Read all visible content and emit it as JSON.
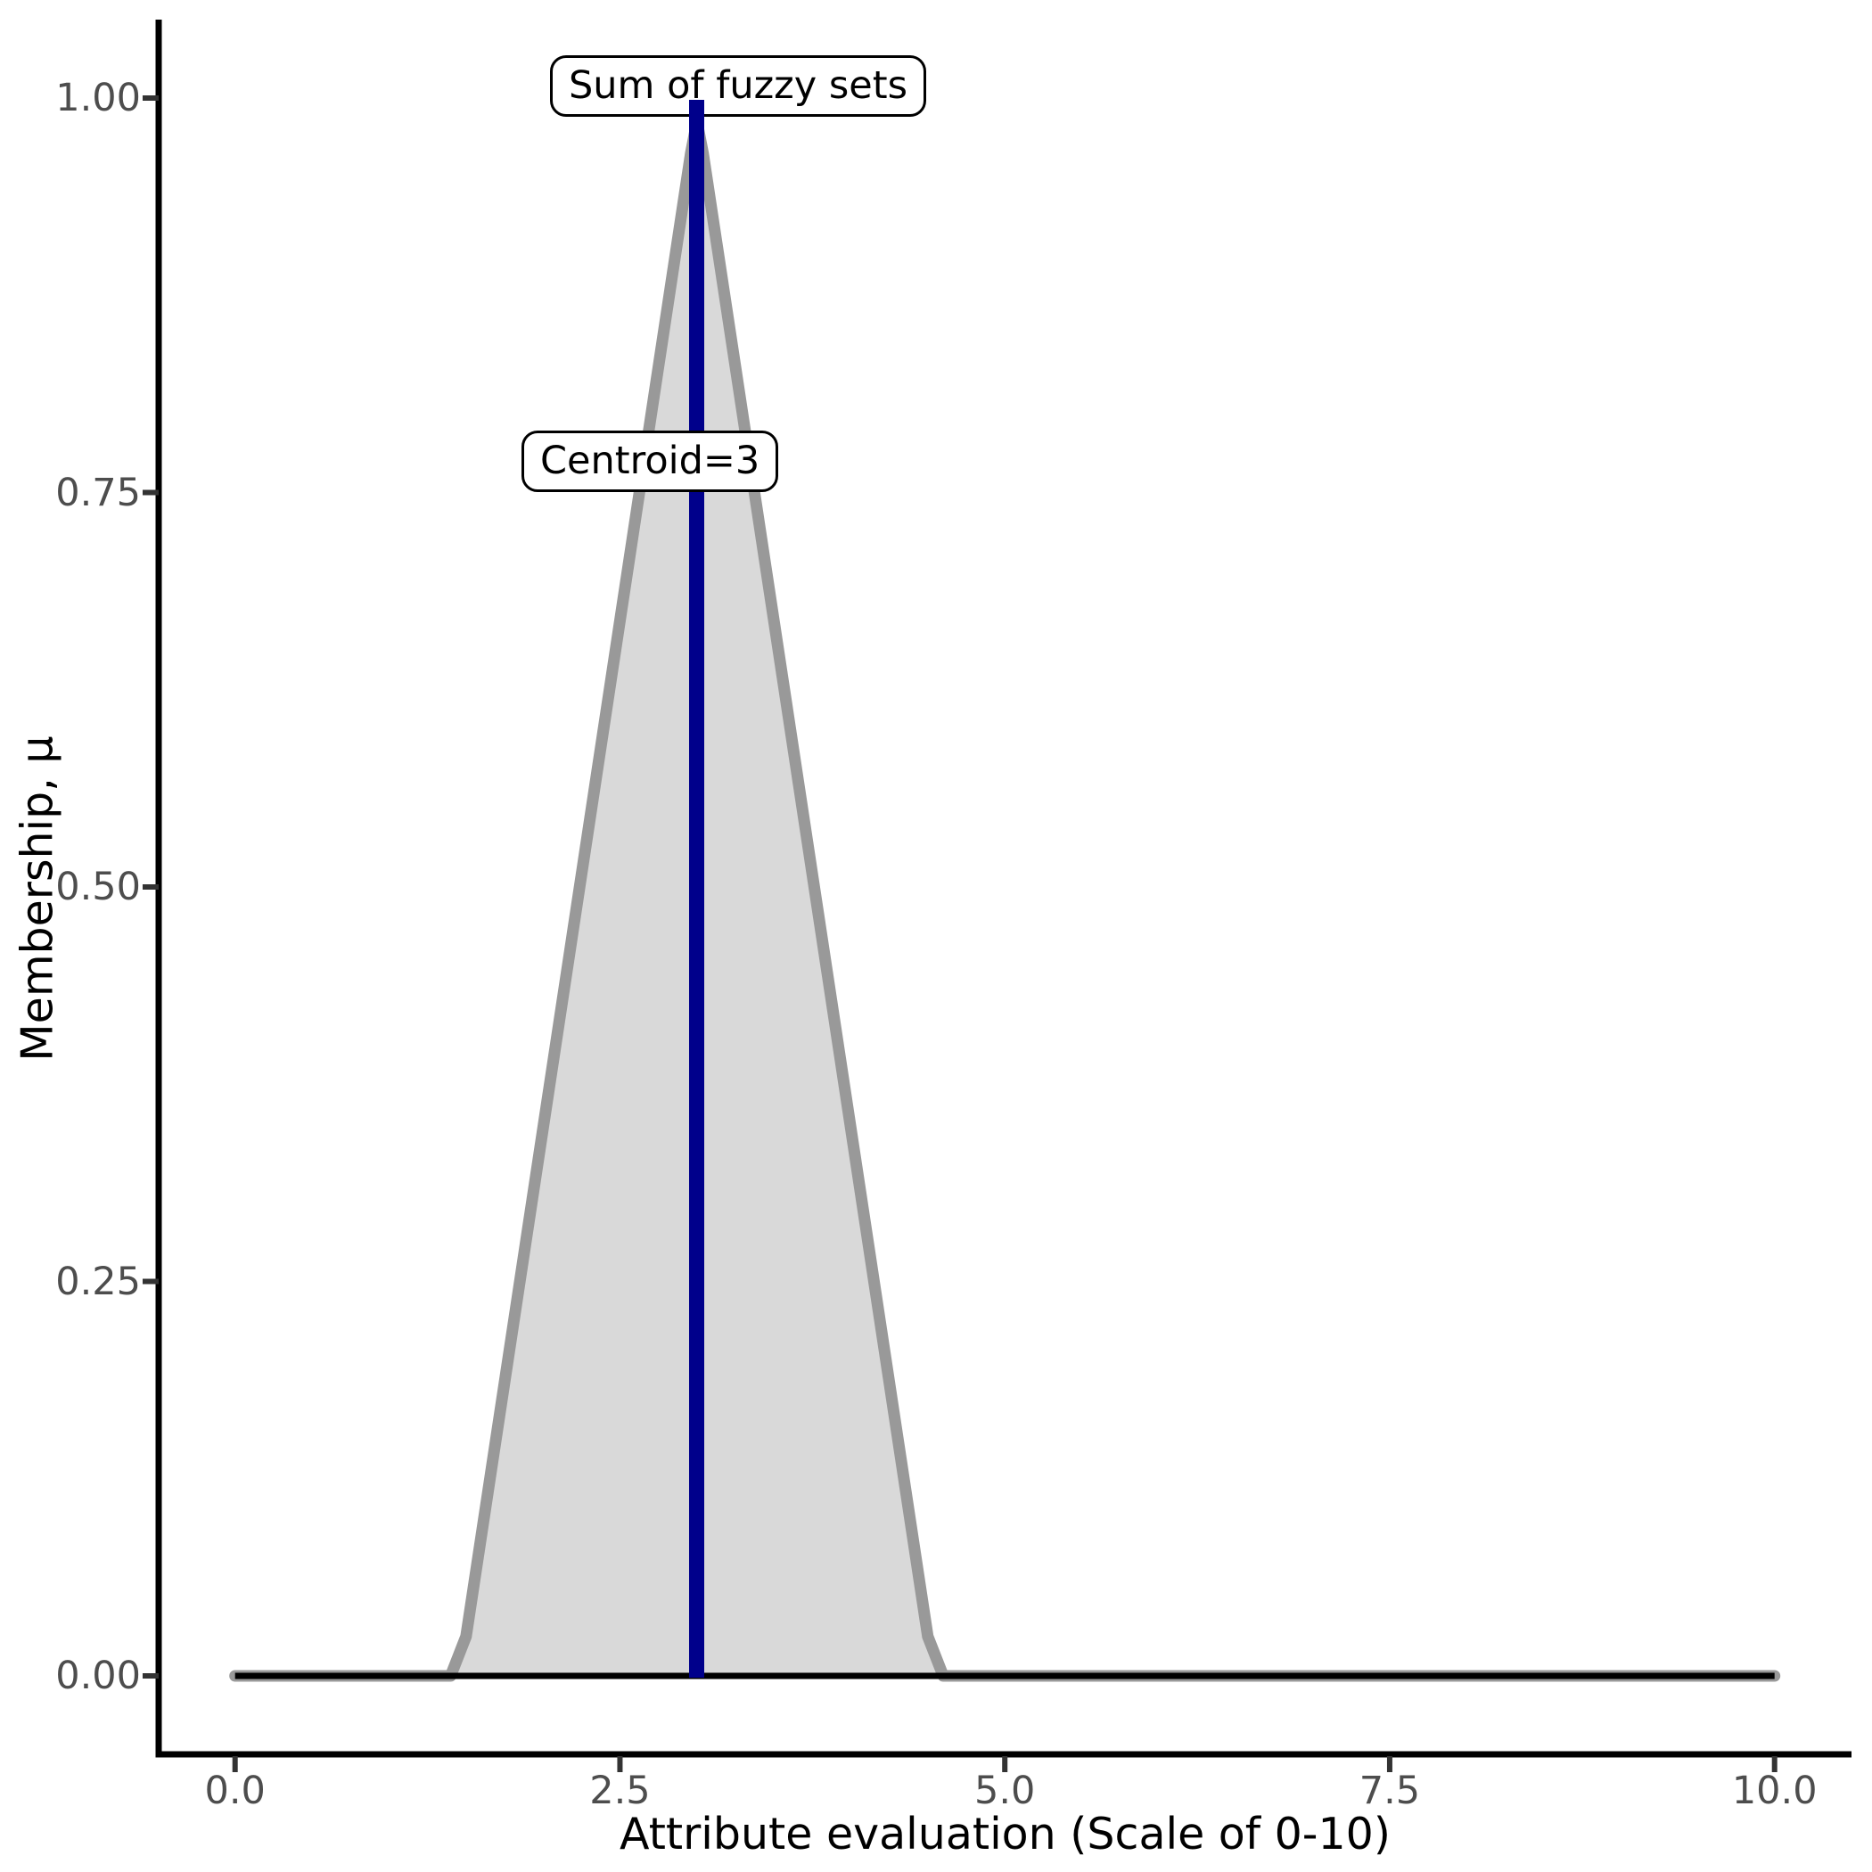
{
  "chart_data": {
    "type": "area",
    "title": "",
    "xlabel": "Attribute evaluation (Scale of 0-10)",
    "ylabel": "Membership, μ",
    "xlim": [
      0,
      10
    ],
    "ylim": [
      0,
      1
    ],
    "grid": false,
    "legend": "none",
    "background": "#ffffff",
    "x_ticks": {
      "values": [
        0,
        2.5,
        5,
        7.5,
        10
      ],
      "labels": [
        "0.0",
        "2.5",
        "5.0",
        "7.5",
        "10.0"
      ]
    },
    "y_ticks": {
      "values": [
        0,
        0.25,
        0.5,
        0.75,
        1
      ],
      "labels": [
        "0.00",
        "0.25",
        "0.50",
        "0.75",
        "1.00"
      ]
    },
    "series": [
      {
        "name": "Sum of fuzzy sets",
        "type": "area",
        "stroke": "#999999",
        "fill": "#d9d9d9",
        "stroke_width": 13,
        "points": [
          [
            0,
            0
          ],
          [
            1.4,
            0
          ],
          [
            1.5,
            0.025
          ],
          [
            2.96,
            0.965
          ],
          [
            3.0,
            0.985
          ],
          [
            3.04,
            0.965
          ],
          [
            4.5,
            0.025
          ],
          [
            4.6,
            0
          ],
          [
            10,
            0
          ]
        ]
      },
      {
        "name": "zero baseline",
        "type": "line",
        "stroke": "#000000",
        "stroke_width": 7,
        "points": [
          [
            0,
            0
          ],
          [
            10,
            0
          ]
        ]
      }
    ],
    "centroid": {
      "x": 3,
      "y_from": 0,
      "y_to": 1,
      "color": "#00008b",
      "line_width": 17
    },
    "annotations": {
      "sum_label": "Sum of fuzzy sets",
      "centroid_label": "Centroid=3"
    },
    "axis": {
      "line_color": "#000000",
      "line_width": 7,
      "tick_color": "#333333",
      "tick_width": 6,
      "tick_length": 18,
      "tick_label_color": "#4d4d4d"
    }
  }
}
